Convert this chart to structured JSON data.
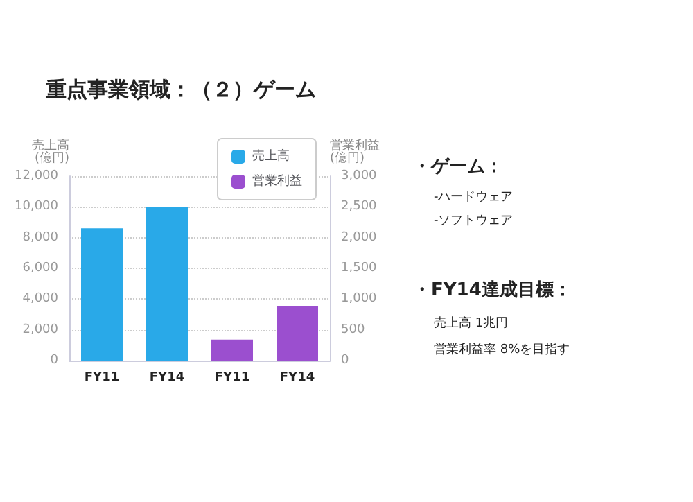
{
  "chart_data": {
    "type": "bar",
    "title": "重点事業領域：（２）ゲーム",
    "categories": [
      "FY11",
      "FY14",
      "FY11",
      "FY14"
    ],
    "series": [
      {
        "name": "売上高",
        "color": "#29a9e8",
        "values": [
          8600,
          10000,
          null,
          null
        ]
      },
      {
        "name": "営業利益",
        "color": "#9b4fcf",
        "values": [
          null,
          null,
          340,
          880
        ],
        "axis": "y2"
      }
    ],
    "ylabel": "売上高\n(億円)",
    "y2label": "営業利益\n(億円)",
    "ylim": [
      0,
      12000
    ],
    "yticks": [
      0,
      {
        "value": 2000,
        "label": "2,000"
      },
      {
        "value": 4000,
        "label": "4,000"
      },
      {
        "value": 6000,
        "label": "6,000"
      },
      {
        "value": 8000,
        "label": "8,000"
      },
      {
        "value": 10000,
        "label": "10,000"
      },
      {
        "value": 12000,
        "label": "12,000"
      }
    ],
    "y2lim": [
      0,
      3000
    ],
    "y2ticks": [
      0,
      500,
      {
        "value": 1000,
        "label": "1,000"
      },
      {
        "value": 1500,
        "label": "1,500"
      },
      {
        "value": 2000,
        "label": "2,000"
      },
      {
        "value": 2500,
        "label": "2,500"
      },
      {
        "value": 3000,
        "label": "3,000"
      }
    ],
    "grid": "y",
    "legend": "top right",
    "annotations": [
      "・ゲーム：",
      "-ハードウェア",
      "-ソフトウェア",
      "・FY14達成目標：",
      "売上高 1兆円",
      "営業利益率 8%を目指す"
    ]
  }
}
